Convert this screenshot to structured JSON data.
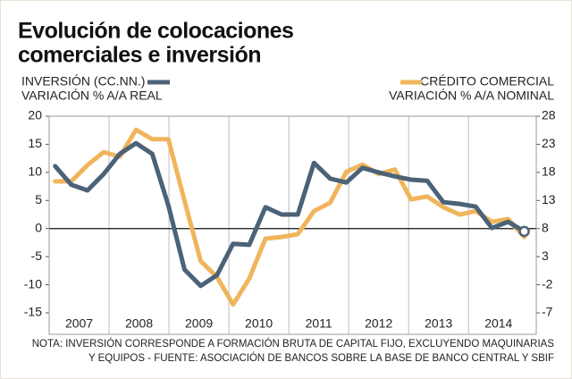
{
  "chart_data": {
    "type": "line",
    "title": [
      "Evolución de colocaciones",
      "comerciales e inversión"
    ],
    "ylabel": "VARIACIÓN % A/A REAL",
    "y2label": "VARIACIÓN % A/A NOMINAL",
    "note": [
      "NOTA: INVERSIÓN CORRESPONDE A FORMACIÓN BRUTA DE CAPITAL FIJO, EXCLUYENDO MAQUINARIAS",
      "Y EQUIPOS - FUENTE: ASOCIACIÓN DE BANCOS SOBRE LA BASE DE BANCO CENTRAL Y SBIF"
    ],
    "x": [
      2007.1,
      2007.37,
      2007.64,
      2007.91,
      2008.18,
      2008.45,
      2008.72,
      2008.99,
      2009.26,
      2009.53,
      2009.8,
      2010.07,
      2010.34,
      2010.61,
      2010.88,
      2011.15,
      2011.42,
      2011.69,
      2011.96,
      2012.23,
      2012.5,
      2012.77,
      2013.04,
      2013.31,
      2013.58,
      2013.85,
      2014.12,
      2014.39,
      2014.66,
      2014.93
    ],
    "xlim": [
      2007,
      2015.13
    ],
    "xticks": [
      {
        "value": 2007.5,
        "label": "2007"
      },
      {
        "value": 2008.5,
        "label": "2008"
      },
      {
        "value": 2009.5,
        "label": "2009"
      },
      {
        "value": 2010.5,
        "label": "2010"
      },
      {
        "value": 2011.5,
        "label": "2011"
      },
      {
        "value": 2012.5,
        "label": "2012"
      },
      {
        "value": 2013.5,
        "label": "2013"
      },
      {
        "value": 2014.5,
        "label": "2014"
      }
    ],
    "ylim": [
      -15,
      20
    ],
    "yticks": [
      -15,
      -10,
      -5,
      0,
      5,
      10,
      15,
      20
    ],
    "y2lim": [
      -7,
      28
    ],
    "y2ticks": [
      -7,
      -2,
      3,
      8,
      13,
      18,
      23,
      28
    ],
    "series": [
      {
        "name": "INVERSIÓN (CC.NN.)",
        "color": "#4b6277",
        "axis": "y",
        "values": [
          11.1,
          7.8,
          6.8,
          9.7,
          13.3,
          15.2,
          13.3,
          4.1,
          -7.3,
          -10.2,
          -8.3,
          -2.7,
          -2.9,
          3.8,
          2.5,
          2.5,
          11.7,
          8.9,
          8.2,
          10.8,
          10.0,
          9.3,
          8.7,
          8.5,
          4.7,
          4.4,
          3.9,
          0.1,
          1.2,
          -0.5
        ]
      },
      {
        "name": "CRÉDITO COMERCIAL",
        "color": "#f0b55c",
        "axis": "y2",
        "values": [
          16.4,
          16.4,
          19.3,
          21.6,
          20.8,
          25.6,
          23.9,
          23.9,
          12.9,
          2.2,
          -0.6,
          -5.5,
          -0.9,
          6.2,
          6.5,
          7.0,
          11.1,
          12.6,
          18.1,
          19.4,
          17.7,
          18.5,
          13.2,
          13.7,
          11.8,
          10.5,
          11.1,
          9.2,
          9.7,
          6.5
        ]
      }
    ]
  }
}
